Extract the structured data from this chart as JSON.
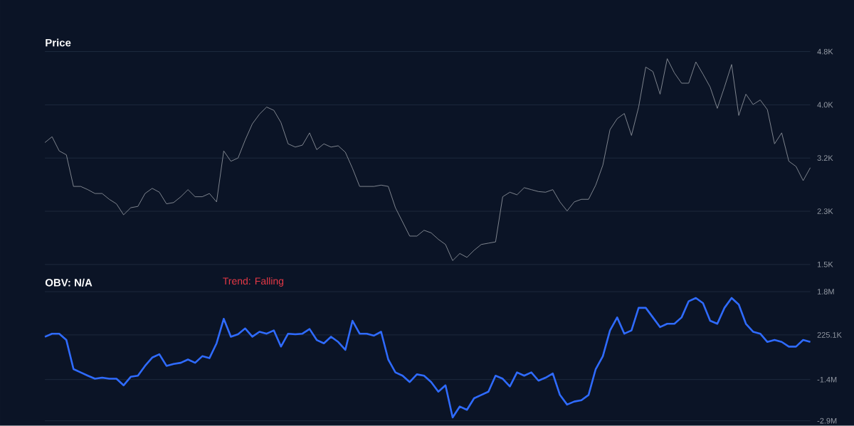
{
  "chart_data": [
    {
      "type": "line",
      "title": "Price",
      "categories": [
        null,
        null,
        null,
        null,
        null,
        null,
        null,
        null,
        null,
        null,
        null,
        null,
        null,
        null,
        null,
        null,
        null,
        null,
        null,
        null,
        null,
        null,
        null,
        null,
        null,
        null,
        null,
        null,
        null,
        null,
        null,
        null,
        null,
        null,
        null,
        null,
        null,
        null,
        null,
        null,
        null,
        null,
        null,
        null,
        null,
        null,
        null,
        null,
        null,
        null,
        null,
        null,
        null,
        null,
        null,
        null,
        null,
        null,
        null,
        null,
        null,
        null,
        null,
        null,
        null,
        null,
        null,
        null,
        null,
        null,
        null,
        null,
        null,
        null,
        null,
        null,
        null,
        null,
        null,
        null,
        null,
        null,
        null,
        null,
        null,
        null,
        null,
        null,
        null,
        null,
        null,
        null,
        null,
        null,
        null,
        null,
        null,
        null,
        null,
        null,
        null,
        null,
        null,
        null,
        null,
        null,
        null,
        null
      ],
      "series": [
        {
          "color": "#8b9099",
          "values": [
            3390,
            3480,
            3260,
            3200,
            2710,
            2710,
            2660,
            2600,
            2600,
            2510,
            2440,
            2270,
            2380,
            2400,
            2600,
            2680,
            2620,
            2440,
            2460,
            2550,
            2660,
            2550,
            2550,
            2600,
            2470,
            3260,
            3100,
            3150,
            3430,
            3680,
            3830,
            3940,
            3890,
            3700,
            3370,
            3320,
            3350,
            3540,
            3280,
            3370,
            3320,
            3340,
            3240,
            2990,
            2710,
            2710,
            2710,
            2730,
            2710,
            2380,
            2160,
            1940,
            1940,
            2030,
            1990,
            1890,
            1810,
            1560,
            1670,
            1610,
            1720,
            1810,
            1830,
            1850,
            2550,
            2620,
            2580,
            2690,
            2660,
            2630,
            2620,
            2660,
            2470,
            2330,
            2470,
            2510,
            2510,
            2730,
            3040,
            3590,
            3760,
            3840,
            3500,
            3940,
            4560,
            4490,
            4140,
            4690,
            4470,
            4310,
            4310,
            4640,
            4450,
            4250,
            3920,
            4250,
            4600,
            3810,
            4140,
            3980,
            4050,
            3900,
            3370,
            3540,
            3100,
            3020,
            2800,
            3000
          ]
        }
      ],
      "ylim": [
        1500,
        4800
      ],
      "yticks": [
        {
          "value": 1500,
          "label": "1.5K"
        },
        {
          "value": 2325,
          "label": "2.3K"
        },
        {
          "value": 3150,
          "label": "3.2K"
        },
        {
          "value": 3975,
          "label": "4.0K"
        },
        {
          "value": 4800,
          "label": "4.8K"
        }
      ],
      "grid": "y",
      "marker": "none"
    },
    {
      "type": "line",
      "title": "OBV: N/A",
      "annotations": [
        "Trend: Falling"
      ],
      "categories": [
        null,
        null,
        null,
        null,
        null,
        null,
        null,
        null,
        null,
        null,
        null,
        null,
        null,
        null,
        null,
        null,
        null,
        null,
        null,
        null,
        null,
        null,
        null,
        null,
        null,
        null,
        null,
        null,
        null,
        null,
        null,
        null,
        null,
        null,
        null,
        null,
        null,
        null,
        null,
        null,
        null,
        null,
        null,
        null,
        null,
        null,
        null,
        null,
        null,
        null,
        null,
        null,
        null,
        null,
        null,
        null,
        null,
        null,
        null,
        null,
        null,
        null,
        null,
        null,
        null,
        null,
        null,
        null,
        null,
        null,
        null,
        null,
        null,
        null,
        null,
        null,
        null,
        null,
        null,
        null,
        null,
        null,
        null,
        null,
        null,
        null,
        null,
        null,
        null,
        null,
        null,
        null,
        null,
        null,
        null,
        null,
        null,
        null,
        null,
        null,
        null,
        null,
        null,
        null,
        null,
        null,
        null,
        null
      ],
      "series": [
        {
          "color": "#2f6bff",
          "values": [
            155000,
            270000,
            270000,
            40000,
            -1020000,
            -1140000,
            -1260000,
            -1370000,
            -1330000,
            -1370000,
            -1370000,
            -1610000,
            -1300000,
            -1260000,
            -900000,
            -600000,
            -480000,
            -900000,
            -830000,
            -790000,
            -670000,
            -790000,
            -550000,
            -620000,
            -80000,
            810000,
            160000,
            250000,
            460000,
            160000,
            340000,
            270000,
            390000,
            -200000,
            270000,
            250000,
            270000,
            440000,
            40000,
            -80000,
            160000,
            -30000,
            -320000,
            740000,
            270000,
            270000,
            200000,
            340000,
            -670000,
            -1140000,
            -1260000,
            -1490000,
            -1210000,
            -1260000,
            -1490000,
            -1840000,
            -1610000,
            -2780000,
            -2380000,
            -2500000,
            -2080000,
            -1960000,
            -1840000,
            -1260000,
            -1370000,
            -1650000,
            -1140000,
            -1260000,
            -1140000,
            -1440000,
            -1330000,
            -1180000,
            -1960000,
            -2310000,
            -2200000,
            -2150000,
            -1960000,
            -1020000,
            -550000,
            390000,
            860000,
            270000,
            390000,
            1210000,
            1210000,
            860000,
            510000,
            630000,
            630000,
            860000,
            1450000,
            1570000,
            1380000,
            740000,
            630000,
            1210000,
            1570000,
            1330000,
            630000,
            340000,
            270000,
            -30000,
            40000,
            -30000,
            -200000,
            -200000,
            40000,
            -30000
          ]
        }
      ],
      "ylim": [
        -2900000,
        1800000
      ],
      "yticks": [
        {
          "value": -2900000,
          "label": "-2.9M"
        },
        {
          "value": -1400000,
          "label": "-1.4M"
        },
        {
          "value": 225100,
          "label": "225.1K"
        },
        {
          "value": 1800000,
          "label": "1.8M"
        }
      ],
      "grid": "y",
      "marker": "none"
    }
  ]
}
